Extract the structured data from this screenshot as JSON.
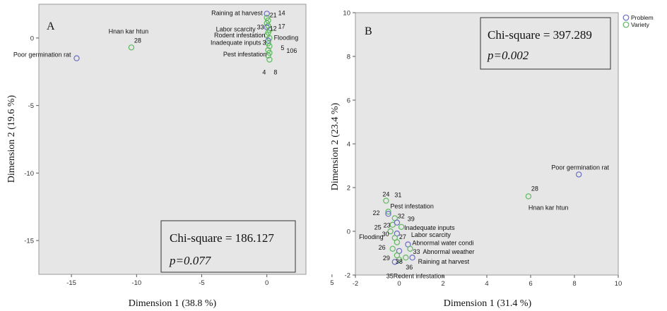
{
  "colors": {
    "problem": "#6b6bc4",
    "variety": "#5fb85f",
    "plot_bg": "#e6e6e6"
  },
  "chart_data": [
    {
      "panel": "A",
      "type": "scatter",
      "xlabel": "Dimension 1 (38.8 %)",
      "ylabel": "Dimension 2 (19.6 %)",
      "xlim": [
        -17.5,
        3
      ],
      "ylim": [
        -17.5,
        2.5
      ],
      "xticks": [
        -15,
        -10,
        -5,
        0,
        5
      ],
      "yticks": [
        0,
        -5,
        -10,
        -15
      ],
      "xtick_labels": [
        "-15",
        "-10",
        "-5",
        "0",
        "5"
      ],
      "ytick_labels": [
        "0",
        "-5",
        "-10",
        "-15"
      ],
      "stats": {
        "chi": "Chi-square = 186.127",
        "p": "p=0.077"
      },
      "legend": "none",
      "points": [
        {
          "x": -14.6,
          "y": -1.5,
          "group": "problem"
        },
        {
          "x": -10.4,
          "y": -0.7,
          "group": "variety"
        },
        {
          "x": 0.0,
          "y": 1.8,
          "group": "problem"
        },
        {
          "x": 0.0,
          "y": 1.5,
          "group": "variety"
        },
        {
          "x": 0.1,
          "y": 1.3,
          "group": "variety"
        },
        {
          "x": 0.0,
          "y": 1.1,
          "group": "variety"
        },
        {
          "x": 0.1,
          "y": 0.9,
          "group": "variety"
        },
        {
          "x": 0.0,
          "y": 0.8,
          "group": "problem"
        },
        {
          "x": 0.2,
          "y": 0.6,
          "group": "variety"
        },
        {
          "x": 0.1,
          "y": 0.4,
          "group": "variety"
        },
        {
          "x": 0.0,
          "y": 0.2,
          "group": "variety"
        },
        {
          "x": 0.2,
          "y": 0.0,
          "group": "variety"
        },
        {
          "x": 0.1,
          "y": -0.2,
          "group": "problem"
        },
        {
          "x": 0.1,
          "y": -0.4,
          "group": "variety"
        },
        {
          "x": 0.2,
          "y": -0.6,
          "group": "variety"
        },
        {
          "x": 0.1,
          "y": -0.9,
          "group": "variety"
        },
        {
          "x": 0.2,
          "y": -1.1,
          "group": "variety"
        },
        {
          "x": 0.1,
          "y": -1.3,
          "group": "variety"
        },
        {
          "x": 0.2,
          "y": -1.6,
          "group": "variety"
        }
      ],
      "labels": [
        {
          "text": "Poor germination rat",
          "x": -14.6,
          "y": -1.5,
          "anchor": "end",
          "dx": -8,
          "dy": -5
        },
        {
          "text": "28",
          "x": -10.4,
          "y": -0.7,
          "anchor": "start",
          "dx": 4,
          "dy": -10
        },
        {
          "text": "Hnan kar htun",
          "x": -10.4,
          "y": -0.7,
          "anchor": "middle",
          "dx": -4,
          "dy": -23
        },
        {
          "text": "Raining at harvest",
          "x": 0.0,
          "y": 1.8,
          "anchor": "end",
          "dx": -6,
          "dy": -1
        },
        {
          "text": "21",
          "x": 0.0,
          "y": 1.8,
          "anchor": "start",
          "dx": 4,
          "dy": 2
        },
        {
          "text": "14",
          "x": 0.0,
          "y": 1.8,
          "anchor": "start",
          "dx": 16,
          "dy": -1
        },
        {
          "text": "17",
          "x": 0.0,
          "y": 1.8,
          "anchor": "start",
          "dx": 16,
          "dy": 18
        },
        {
          "text": "Labor scarcity",
          "x": 0.0,
          "y": 0.8,
          "anchor": "end",
          "dx": -16,
          "dy": 3
        },
        {
          "text": "33",
          "x": 0.0,
          "y": 0.8,
          "anchor": "end",
          "dx": -4,
          "dy": 0
        },
        {
          "text": "12",
          "x": 0.0,
          "y": 0.8,
          "anchor": "start",
          "dx": 4,
          "dy": 2
        },
        {
          "text": "Flooding",
          "x": 0.0,
          "y": 0.8,
          "anchor": "start",
          "dx": 10,
          "dy": 15
        },
        {
          "text": "Rodent infestation",
          "x": 0.1,
          "y": 0.2,
          "anchor": "end",
          "dx": -4,
          "dy": 0
        },
        {
          "text": "3",
          "x": 0.1,
          "y": -0.4,
          "anchor": "end",
          "dx": -3,
          "dy": -1
        },
        {
          "text": "Inadequate inputs",
          "x": 0.1,
          "y": -0.2,
          "anchor": "end",
          "dx": -10,
          "dy": 3
        },
        {
          "text": "5",
          "x": 0.2,
          "y": -0.9,
          "anchor": "start",
          "dx": 16,
          "dy": -3
        },
        {
          "text": "106",
          "x": 0.2,
          "y": -0.9,
          "anchor": "start",
          "dx": 24,
          "dy": 1
        },
        {
          "text": "Pest infestation",
          "x": 0.2,
          "y": -1.1,
          "anchor": "end",
          "dx": -4,
          "dy": 2
        },
        {
          "text": "4",
          "x": 0.2,
          "y": -1.6,
          "anchor": "end",
          "dx": -5,
          "dy": 18
        },
        {
          "text": "8",
          "x": 0.2,
          "y": -1.6,
          "anchor": "start",
          "dx": 6,
          "dy": 18
        }
      ]
    },
    {
      "panel": "B",
      "type": "scatter",
      "xlabel": "Dimension 1 (31.4 %)",
      "ylabel": "Dimension 2 (23.4 %)",
      "xlim": [
        -2,
        10
      ],
      "ylim": [
        -2,
        10
      ],
      "xticks": [
        -2,
        0,
        2,
        4,
        6,
        8,
        10
      ],
      "yticks": [
        -2,
        0,
        2,
        4,
        6,
        8,
        10
      ],
      "xtick_labels": [
        "-2",
        "0",
        "2",
        "4",
        "6",
        "8",
        "10"
      ],
      "ytick_labels": [
        "-2",
        "0",
        "2",
        "4",
        "6",
        "8",
        "10"
      ],
      "stats": {
        "chi": "Chi-square = 397.289",
        "p": "p=0.002"
      },
      "legend": "top-right",
      "legend_items": [
        {
          "label": "Problem",
          "group": "problem"
        },
        {
          "label": "Variety",
          "group": "variety"
        }
      ],
      "points": [
        {
          "x": 8.2,
          "y": 2.6,
          "group": "problem"
        },
        {
          "x": 5.9,
          "y": 1.6,
          "group": "variety"
        },
        {
          "x": -0.6,
          "y": 1.4,
          "group": "variety"
        },
        {
          "x": -0.5,
          "y": 0.9,
          "group": "variety"
        },
        {
          "x": -0.5,
          "y": 0.8,
          "group": "problem"
        },
        {
          "x": -0.2,
          "y": 0.6,
          "group": "variety"
        },
        {
          "x": -0.3,
          "y": 0.3,
          "group": "variety"
        },
        {
          "x": -0.1,
          "y": 0.4,
          "group": "problem"
        },
        {
          "x": 0.1,
          "y": 0.2,
          "group": "variety"
        },
        {
          "x": -0.4,
          "y": 0.0,
          "group": "variety"
        },
        {
          "x": -0.1,
          "y": -0.1,
          "group": "problem"
        },
        {
          "x": -0.2,
          "y": -0.3,
          "group": "variety"
        },
        {
          "x": -0.1,
          "y": -0.5,
          "group": "variety"
        },
        {
          "x": 0.4,
          "y": -0.6,
          "group": "problem"
        },
        {
          "x": -0.3,
          "y": -0.8,
          "group": "variety"
        },
        {
          "x": 0.0,
          "y": -0.9,
          "group": "problem"
        },
        {
          "x": 0.5,
          "y": -0.8,
          "group": "variety"
        },
        {
          "x": -0.1,
          "y": -1.1,
          "group": "variety"
        },
        {
          "x": 0.3,
          "y": -1.2,
          "group": "variety"
        },
        {
          "x": 0.0,
          "y": -1.3,
          "group": "variety"
        },
        {
          "x": 0.6,
          "y": -1.2,
          "group": "problem"
        },
        {
          "x": -0.2,
          "y": -1.4,
          "group": "problem"
        }
      ],
      "labels": [
        {
          "text": "Poor germination rat",
          "x": 8.2,
          "y": 2.6,
          "anchor": "middle",
          "dx": 2,
          "dy": -10
        },
        {
          "text": "28",
          "x": 5.9,
          "y": 1.6,
          "anchor": "start",
          "dx": 4,
          "dy": -11
        },
        {
          "text": "Hnan kar htun",
          "x": 5.9,
          "y": 1.6,
          "anchor": "start",
          "dx": 0,
          "dy": 16
        },
        {
          "text": "24",
          "x": -0.6,
          "y": 1.4,
          "anchor": "middle",
          "dx": 0,
          "dy": -9
        },
        {
          "text": "31",
          "x": -0.6,
          "y": 1.4,
          "anchor": "start",
          "dx": 12,
          "dy": -8
        },
        {
          "text": "Pest infestation",
          "x": -0.6,
          "y": 1.4,
          "anchor": "start",
          "dx": 6,
          "dy": 8
        },
        {
          "text": "22",
          "x": -0.5,
          "y": 0.9,
          "anchor": "end",
          "dx": -12,
          "dy": 2
        },
        {
          "text": "32",
          "x": -0.2,
          "y": 0.6,
          "anchor": "start",
          "dx": 4,
          "dy": -3
        },
        {
          "text": "39",
          "x": -0.2,
          "y": 0.6,
          "anchor": "start",
          "dx": 18,
          "dy": 1
        },
        {
          "text": "Inadequate inputs",
          "x": 0.1,
          "y": 0.2,
          "anchor": "start",
          "dx": 4,
          "dy": 1
        },
        {
          "text": "23",
          "x": -0.3,
          "y": 0.3,
          "anchor": "end",
          "dx": -3,
          "dy": 1
        },
        {
          "text": "25",
          "x": -0.3,
          "y": 0.3,
          "anchor": "end",
          "dx": -16,
          "dy": 4
        },
        {
          "text": "30",
          "x": -0.4,
          "y": 0.0,
          "anchor": "start",
          "dx": -12,
          "dy": 4
        },
        {
          "text": "27",
          "x": -0.1,
          "y": -0.1,
          "anchor": "start",
          "dx": 3,
          "dy": 5
        },
        {
          "text": "Labor scarcity",
          "x": -0.1,
          "y": -0.1,
          "anchor": "start",
          "dx": 20,
          "dy": 2
        },
        {
          "text": "Flooding",
          "x": -0.4,
          "y": 0.0,
          "anchor": "end",
          "dx": -10,
          "dy": 8
        },
        {
          "text": "Abnormal water condi",
          "x": 0.4,
          "y": -0.6,
          "anchor": "start",
          "dx": 6,
          "dy": -2
        },
        {
          "text": "26",
          "x": -0.3,
          "y": -0.8,
          "anchor": "end",
          "dx": -10,
          "dy": -2
        },
        {
          "text": "33",
          "x": 0.5,
          "y": -0.8,
          "anchor": "start",
          "dx": 4,
          "dy": 4
        },
        {
          "text": "Abnormal weather",
          "x": 0.5,
          "y": -0.8,
          "anchor": "start",
          "dx": 18,
          "dy": 4
        },
        {
          "text": "29",
          "x": -0.1,
          "y": -1.1,
          "anchor": "end",
          "dx": -10,
          "dy": 4
        },
        {
          "text": "38",
          "x": -0.1,
          "y": -1.1,
          "anchor": "start",
          "dx": -2,
          "dy": 9
        },
        {
          "text": "36",
          "x": 0.3,
          "y": -1.2,
          "anchor": "start",
          "dx": 0,
          "dy": 14
        },
        {
          "text": "Raining at harvest",
          "x": 0.6,
          "y": -1.2,
          "anchor": "start",
          "dx": 8,
          "dy": 6
        },
        {
          "text": "35",
          "x": -0.2,
          "y": -1.4,
          "anchor": "end",
          "dx": -2,
          "dy": 20
        },
        {
          "text": "Rodent infestation",
          "x": -0.2,
          "y": -1.4,
          "anchor": "start",
          "dx": -2,
          "dy": 20
        }
      ]
    }
  ]
}
